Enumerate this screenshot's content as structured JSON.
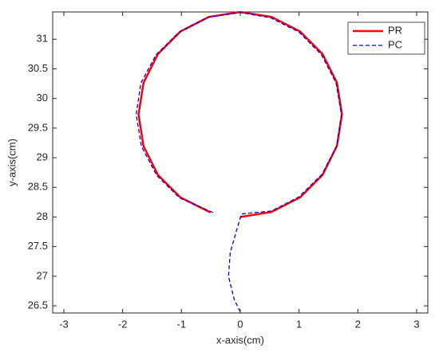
{
  "chart_data": {
    "type": "line",
    "xlabel": "x-axis(cm)",
    "ylabel": "y-axis(cm)",
    "xlim": [
      -3.19,
      3.19
    ],
    "ylim": [
      26.38,
      31.46
    ],
    "xticks": [
      -3,
      -2,
      -1,
      0,
      1,
      2,
      3
    ],
    "yticks": [
      26.5,
      27,
      27.5,
      28,
      28.5,
      29,
      29.5,
      30,
      30.5,
      31
    ],
    "legend": "upper right",
    "series": [
      {
        "name": "PR",
        "color": "#ff0000",
        "style": "solid",
        "x": [
          0,
          0.53,
          1.017,
          1.4,
          1.645,
          1.73,
          1.645,
          1.4,
          1.017,
          0.535,
          0,
          -0.535,
          -1.017,
          -1.4,
          -1.645,
          -1.73,
          -1.645,
          -1.4,
          -1.017,
          -0.506
        ],
        "values": [
          28.0,
          28.085,
          28.33,
          28.71,
          29.2,
          29.73,
          30.265,
          30.75,
          31.13,
          31.375,
          31.46,
          31.375,
          31.13,
          30.75,
          30.265,
          29.73,
          29.195,
          28.71,
          28.33,
          28.076
        ]
      },
      {
        "name": "PC",
        "color": "#0000ff",
        "style": "dashed",
        "x": [
          0,
          -0.1,
          -0.2,
          -0.17,
          -0.07,
          0.02,
          0.2,
          0.53,
          1.0,
          1.39,
          1.64,
          1.72,
          1.63,
          1.38,
          1.0,
          0.52,
          0,
          -0.55,
          -1.04,
          -1.43,
          -1.69,
          -1.77,
          -1.68,
          -1.42,
          -1.03,
          -0.45
        ],
        "values": [
          26.4,
          26.6,
          27.0,
          27.4,
          27.75,
          28.05,
          28.07,
          28.1,
          28.34,
          28.72,
          29.2,
          29.73,
          30.26,
          30.74,
          31.12,
          31.36,
          31.45,
          31.37,
          31.12,
          30.74,
          30.26,
          29.73,
          29.19,
          28.7,
          28.32,
          28.07
        ]
      }
    ]
  }
}
